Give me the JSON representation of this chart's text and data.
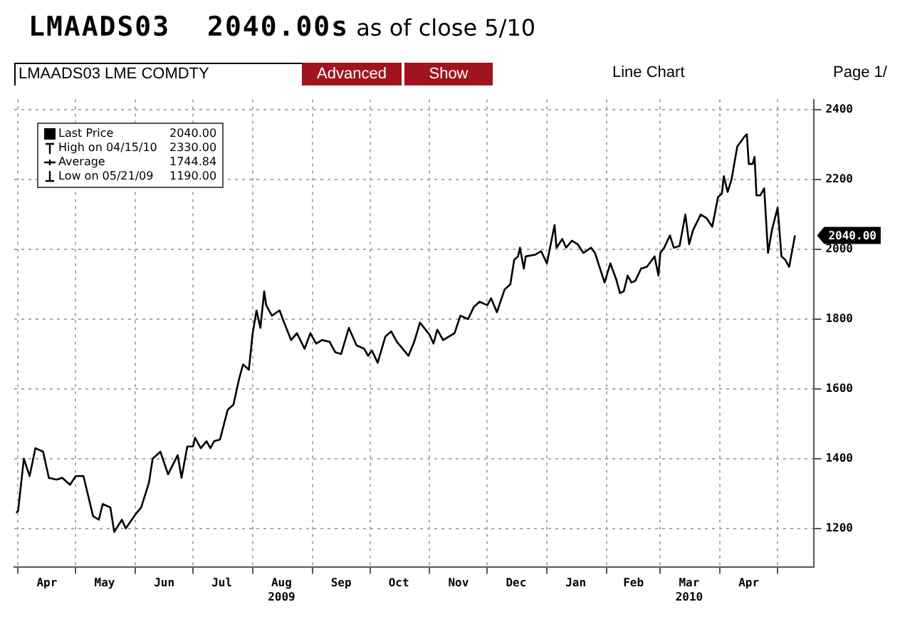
{
  "chart_data": {
    "type": "line",
    "title": "LMAADS03",
    "subtitle": "2040.00s as of close  5/10",
    "annotations": [
      "LMAADS03 LME COMDTY",
      "Advanced",
      "Show",
      "Line Chart",
      "Page 1/",
      "2040.00",
      "High on 04/15/10",
      "2330.00",
      "Average",
      "1744.84",
      "Low on 05/21/09",
      "1190.00",
      {
        "text": "2040.00",
        "x": "2010-05-10",
        "y": 2040
      }
    ],
    "series": [
      {
        "name": "Last Price",
        "color": "#000000",
        "x": [
          "2009-03-31",
          "2009-04-01",
          "2009-04-04",
          "2009-04-07",
          "2009-04-10",
          "2009-04-14",
          "2009-04-17",
          "2009-04-21",
          "2009-04-24",
          "2009-04-28",
          "2009-05-01",
          "2009-05-05",
          "2009-05-10",
          "2009-05-13",
          "2009-05-15",
          "2009-05-19",
          "2009-05-21",
          "2009-05-25",
          "2009-05-27",
          "2009-06-01",
          "2009-06-04",
          "2009-06-08",
          "2009-06-10",
          "2009-06-14",
          "2009-06-18",
          "2009-06-23",
          "2009-06-25",
          "2009-06-28",
          "2009-07-01",
          "2009-07-02",
          "2009-07-05",
          "2009-07-08",
          "2009-07-10",
          "2009-07-12",
          "2009-07-15",
          "2009-07-19",
          "2009-07-22",
          "2009-07-25",
          "2009-07-27",
          "2009-07-30",
          "2009-08-01",
          "2009-08-03",
          "2009-08-05",
          "2009-08-07",
          "2009-08-08",
          "2009-08-11",
          "2009-08-15",
          "2009-08-17",
          "2009-08-21",
          "2009-08-24",
          "2009-08-28",
          "2009-08-31",
          "2009-09-03",
          "2009-09-06",
          "2009-09-10",
          "2009-09-13",
          "2009-09-16",
          "2009-09-20",
          "2009-09-24",
          "2009-09-28",
          "2009-09-30",
          "2009-10-02",
          "2009-10-05",
          "2009-10-09",
          "2009-10-12",
          "2009-10-15",
          "2009-10-21",
          "2009-10-24",
          "2009-10-27",
          "2009-11-01",
          "2009-11-03",
          "2009-11-05",
          "2009-11-08",
          "2009-11-14",
          "2009-11-17",
          "2009-11-21",
          "2009-11-24",
          "2009-11-27",
          "2009-12-01",
          "2009-12-03",
          "2009-12-06",
          "2009-12-10",
          "2009-12-13",
          "2009-12-15",
          "2009-12-17",
          "2009-12-18",
          "2009-12-20",
          "2009-12-21",
          "2009-12-26",
          "2009-12-29",
          "2010-01-01",
          "2010-01-05",
          "2010-01-06",
          "2010-01-09",
          "2010-01-11",
          "2010-01-14",
          "2010-01-17",
          "2010-01-20",
          "2010-01-24",
          "2010-01-26",
          "2010-01-31",
          "2010-02-03",
          "2010-02-06",
          "2010-02-08",
          "2010-02-10",
          "2010-02-12",
          "2010-02-14",
          "2010-02-16",
          "2010-02-19",
          "2010-02-22",
          "2010-02-26",
          "2010-02-28",
          "2010-03-01",
          "2010-03-03",
          "2010-03-06",
          "2010-03-08",
          "2010-03-11",
          "2010-03-14",
          "2010-03-16",
          "2010-03-18",
          "2010-03-22",
          "2010-03-25",
          "2010-03-28",
          "2010-03-31",
          "2010-04-02",
          "2010-04-03",
          "2010-04-05",
          "2010-04-07",
          "2010-04-10",
          "2010-04-14",
          "2010-04-15",
          "2010-04-16",
          "2010-04-18",
          "2010-04-19",
          "2010-04-20",
          "2010-04-22",
          "2010-04-24",
          "2010-04-26",
          "2010-04-28",
          "2010-05-01",
          "2010-05-03",
          "2010-05-05",
          "2010-05-07",
          "2010-05-10"
        ],
        "values": [
          1245,
          1250,
          1400,
          1350,
          1430,
          1420,
          1345,
          1340,
          1345,
          1325,
          1350,
          1350,
          1235,
          1225,
          1270,
          1260,
          1190,
          1225,
          1200,
          1240,
          1260,
          1330,
          1400,
          1420,
          1355,
          1410,
          1345,
          1435,
          1435,
          1460,
          1430,
          1450,
          1430,
          1450,
          1455,
          1540,
          1555,
          1630,
          1670,
          1655,
          1760,
          1825,
          1775,
          1880,
          1840,
          1810,
          1825,
          1795,
          1740,
          1760,
          1715,
          1760,
          1730,
          1740,
          1735,
          1705,
          1700,
          1775,
          1725,
          1715,
          1695,
          1710,
          1675,
          1750,
          1765,
          1735,
          1695,
          1735,
          1790,
          1755,
          1730,
          1770,
          1740,
          1760,
          1810,
          1800,
          1835,
          1850,
          1840,
          1860,
          1820,
          1885,
          1900,
          1970,
          1980,
          2005,
          1945,
          1980,
          1985,
          1995,
          1960,
          2070,
          2005,
          2030,
          2005,
          2025,
          2015,
          1990,
          2005,
          1990,
          1905,
          1960,
          1915,
          1875,
          1880,
          1925,
          1905,
          1910,
          1945,
          1950,
          1980,
          1925,
          1990,
          2005,
          2040,
          2005,
          2010,
          2100,
          2015,
          2055,
          2100,
          2090,
          2065,
          2150,
          2160,
          2210,
          2165,
          2200,
          2295,
          2325,
          2330,
          2245,
          2245,
          2265,
          2155,
          2155,
          2175,
          1990,
          2055,
          2120,
          1980,
          1970,
          1950,
          2040
        ]
      }
    ],
    "xlim": [
      "2009-03-30",
      "2010-05-20"
    ],
    "xticks": [
      {
        "value": "2009-04-01",
        "label": null
      },
      {
        "value": "2009-04-16",
        "label": "Apr"
      },
      {
        "value": "2009-05-01",
        "label": null
      },
      {
        "value": "2009-05-16",
        "label": "May"
      },
      {
        "value": "2009-06-01",
        "label": null
      },
      {
        "value": "2009-06-16",
        "label": "Jun"
      },
      {
        "value": "2009-07-01",
        "label": null
      },
      {
        "value": "2009-07-16",
        "label": "Jul"
      },
      {
        "value": "2009-08-01",
        "label": null
      },
      {
        "value": "2009-08-16",
        "label": "Aug\n2009"
      },
      {
        "value": "2009-09-01",
        "label": null
      },
      {
        "value": "2009-09-16",
        "label": "Sep"
      },
      {
        "value": "2009-10-01",
        "label": null
      },
      {
        "value": "2009-10-16",
        "label": "Oct"
      },
      {
        "value": "2009-11-01",
        "label": null
      },
      {
        "value": "2009-11-16",
        "label": "Nov"
      },
      {
        "value": "2009-12-01",
        "label": null
      },
      {
        "value": "2009-12-16",
        "label": "Dec"
      },
      {
        "value": "2010-01-01",
        "label": null
      },
      {
        "value": "2010-01-16",
        "label": "Jan"
      },
      {
        "value": "2010-02-01",
        "label": null
      },
      {
        "value": "2010-02-15",
        "label": "Feb"
      },
      {
        "value": "2010-03-01",
        "label": null
      },
      {
        "value": "2010-03-16",
        "label": "Mar\n2010"
      },
      {
        "value": "2010-04-01",
        "label": null
      },
      {
        "value": "2010-04-16",
        "label": "Apr"
      },
      {
        "value": "2010-05-01",
        "label": null
      }
    ],
    "ylim": [
      1090,
      2430
    ],
    "yticks": [
      1200,
      1400,
      1600,
      1800,
      2000,
      2200,
      2400
    ],
    "grid": true,
    "legend": "top left",
    "marker": "none",
    "line_style": "solid"
  }
}
